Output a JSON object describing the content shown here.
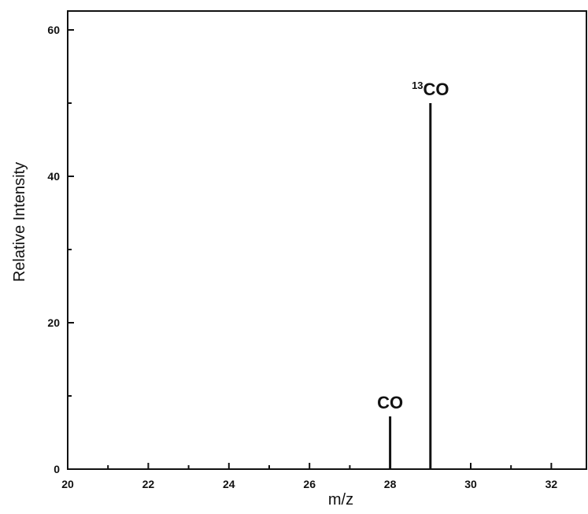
{
  "chart_data": {
    "type": "bar",
    "xlabel": "m/z",
    "ylabel": "Relative Intensity",
    "xlim": [
      20,
      33
    ],
    "ylim": [
      0,
      63
    ],
    "x_ticks_major": [
      20,
      22,
      24,
      26,
      28,
      30,
      32
    ],
    "x_ticks_minor": [
      21,
      23,
      25,
      27,
      29,
      31
    ],
    "y_ticks_major": [
      0,
      20,
      40,
      60
    ],
    "y_ticks_minor": [
      10,
      30,
      50
    ],
    "grid": false,
    "series": [
      {
        "x": [
          28,
          29
        ],
        "values": [
          7.2,
          50
        ]
      }
    ],
    "peaks": [
      {
        "x": 28,
        "y": 7.2,
        "label_sup": "",
        "label": "CO"
      },
      {
        "x": 29,
        "y": 50,
        "label_sup": "13",
        "label": "CO"
      }
    ],
    "colors": {
      "line": "#111111",
      "axes": "#111111",
      "background": "#ffffff"
    }
  }
}
